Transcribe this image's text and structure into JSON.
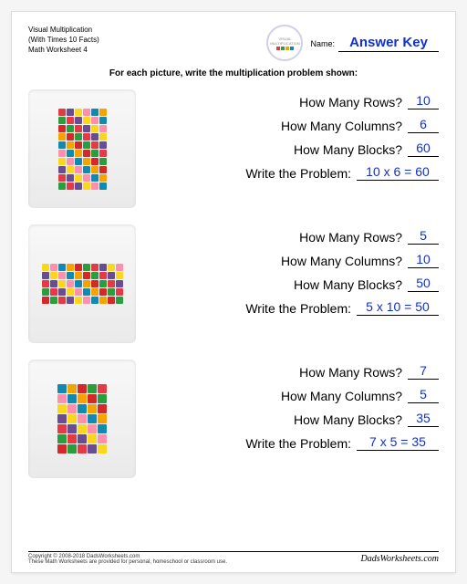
{
  "header": {
    "title_line1": "Visual Multiplication",
    "title_line2": "(With Times 10 Facts)",
    "title_line3": "Math Worksheet 4",
    "logo_top": "VISUAL",
    "logo_bottom": "MULTIPLICATION",
    "name_label": "Name:",
    "name_value": "Answer Key"
  },
  "instruction": "For each picture, write the multiplication problem shown:",
  "labels": {
    "rows": "How Many Rows?",
    "cols": "How Many Columns?",
    "blocks": "How Many Blocks?",
    "problem": "Write the Problem:"
  },
  "palette": [
    "#e63946",
    "#f4a300",
    "#f9d71c",
    "#2a9d3f",
    "#118ab2",
    "#6a4c93",
    "#d62828",
    "#ff8fab"
  ],
  "problems": [
    {
      "rows": 10,
      "cols": 6,
      "rows_ans": "10",
      "cols_ans": "6",
      "blocks_ans": "60",
      "problem_ans": "10 x 6 = 60",
      "cell_size": 8
    },
    {
      "rows": 5,
      "cols": 10,
      "rows_ans": "5",
      "cols_ans": "10",
      "blocks_ans": "50",
      "problem_ans": "5 x 10 = 50",
      "cell_size": 8
    },
    {
      "rows": 7,
      "cols": 5,
      "rows_ans": "7",
      "cols_ans": "5",
      "blocks_ans": "35",
      "problem_ans": "7 x 5 = 35",
      "cell_size": 10
    }
  ],
  "footer": {
    "copyright": "Copyright © 2008-2018 DadsWorksheets.com",
    "note": "These Math Worksheets are provided for personal, homeschool or classroom use.",
    "brand": "DadsWorksheets.com"
  },
  "colors": {
    "answer": "#1030d0",
    "bg": "#f5f5f5",
    "sheet": "#ffffff"
  }
}
